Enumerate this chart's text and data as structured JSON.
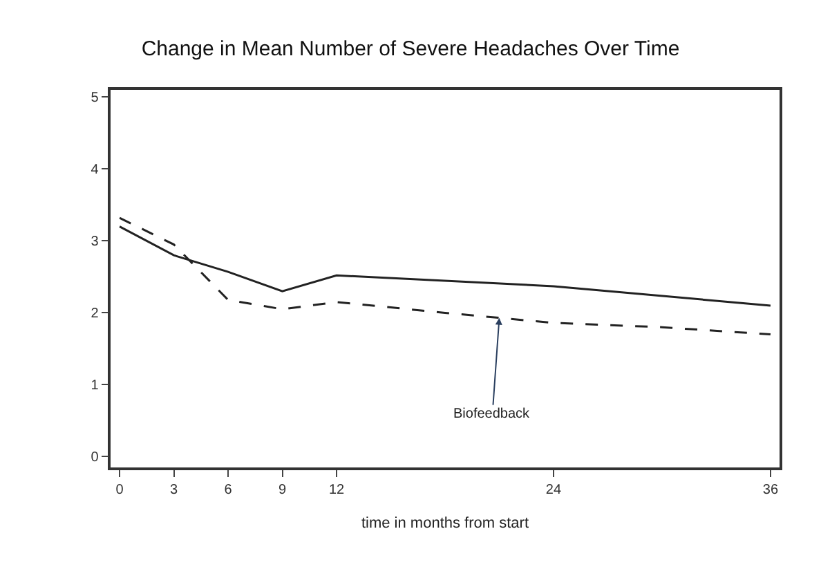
{
  "chart_data": {
    "type": "line",
    "title": "Change in Mean Number of Severe Headaches Over Time",
    "xlabel": "time in months from start",
    "series": [
      {
        "color": "#222222",
        "line_style": "solid",
        "x": [
          0,
          3,
          6,
          9,
          12,
          24,
          36
        ],
        "values": [
          3.2,
          2.8,
          2.57,
          2.3,
          2.52,
          2.37,
          2.1
        ]
      },
      {
        "color": "#222222",
        "line_style": "dashed",
        "x": [
          0,
          3,
          6,
          9,
          12,
          18,
          24,
          30,
          36
        ],
        "values": [
          3.32,
          2.95,
          2.18,
          2.05,
          2.15,
          2.0,
          1.86,
          1.8,
          1.7
        ]
      }
    ],
    "annotations": [
      {
        "text": "Biofeedback",
        "x": 21,
        "y": 1.93
      }
    ],
    "xlim": [
      -0.5,
      36.5
    ],
    "xticks": [
      0,
      3,
      6,
      9,
      12,
      24,
      36
    ],
    "ylim": [
      -0.15,
      5.1
    ],
    "yticks": [
      0,
      1,
      2,
      3,
      4,
      5
    ],
    "marker": "none"
  }
}
